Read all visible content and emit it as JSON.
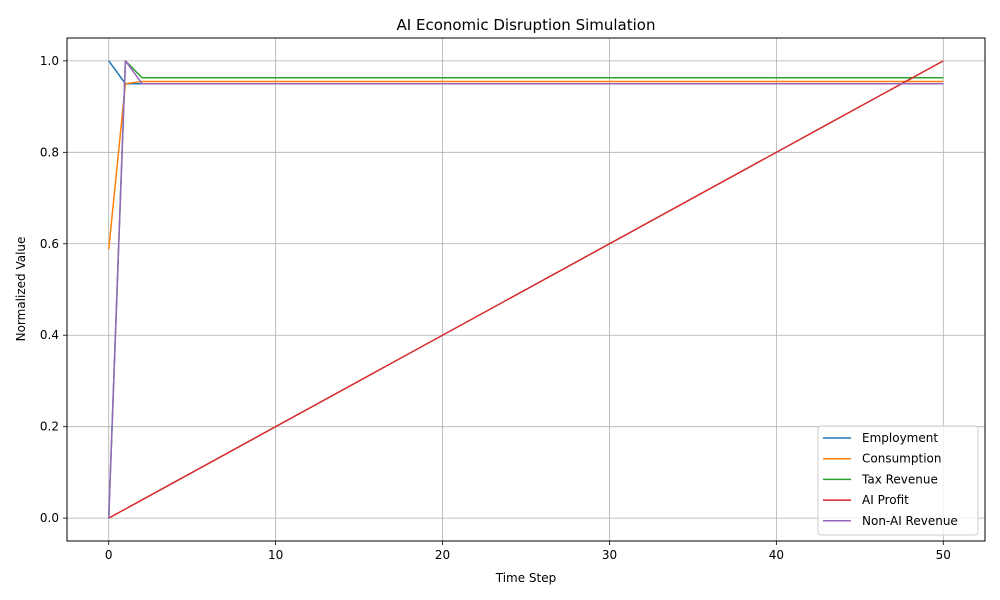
{
  "chart_data": {
    "type": "line",
    "title": "AI Economic Disruption Simulation",
    "xlabel": "Time Step",
    "ylabel": "Normalized Value",
    "xlim": [
      -2.5,
      52.5
    ],
    "ylim": [
      -0.05,
      1.05
    ],
    "xticks": [
      0,
      10,
      20,
      30,
      40,
      50
    ],
    "yticks": [
      0.0,
      0.2,
      0.4,
      0.6,
      0.8,
      1.0
    ],
    "xtick_labels": [
      "0",
      "10",
      "20",
      "30",
      "40",
      "50"
    ],
    "ytick_labels": [
      "0.0",
      "0.2",
      "0.4",
      "0.6",
      "0.8",
      "1.0"
    ],
    "grid": true,
    "legend_position": "lower right",
    "series": [
      {
        "name": "Employment",
        "color": "#1f77b4",
        "x": [
          0,
          1,
          50
        ],
        "y": [
          1.0,
          0.95,
          0.95
        ]
      },
      {
        "name": "Consumption",
        "color": "#ff7f0e",
        "x": [
          0,
          1,
          2,
          50
        ],
        "y": [
          0.588,
          0.95,
          0.955,
          0.955
        ]
      },
      {
        "name": "Tax Revenue",
        "color": "#2ca02c",
        "x": [
          0,
          1,
          2,
          50
        ],
        "y": [
          0.0,
          1.0,
          0.963,
          0.963
        ]
      },
      {
        "name": "AI Profit",
        "color": "#d62728",
        "x": [
          0,
          1,
          50
        ],
        "y": [
          0.0,
          0.02,
          1.0
        ]
      },
      {
        "name": "Non-AI Revenue",
        "color": "#9467bd",
        "x": [
          0,
          1,
          2,
          50
        ],
        "y": [
          0.0,
          1.0,
          0.95,
          0.95
        ]
      }
    ]
  }
}
